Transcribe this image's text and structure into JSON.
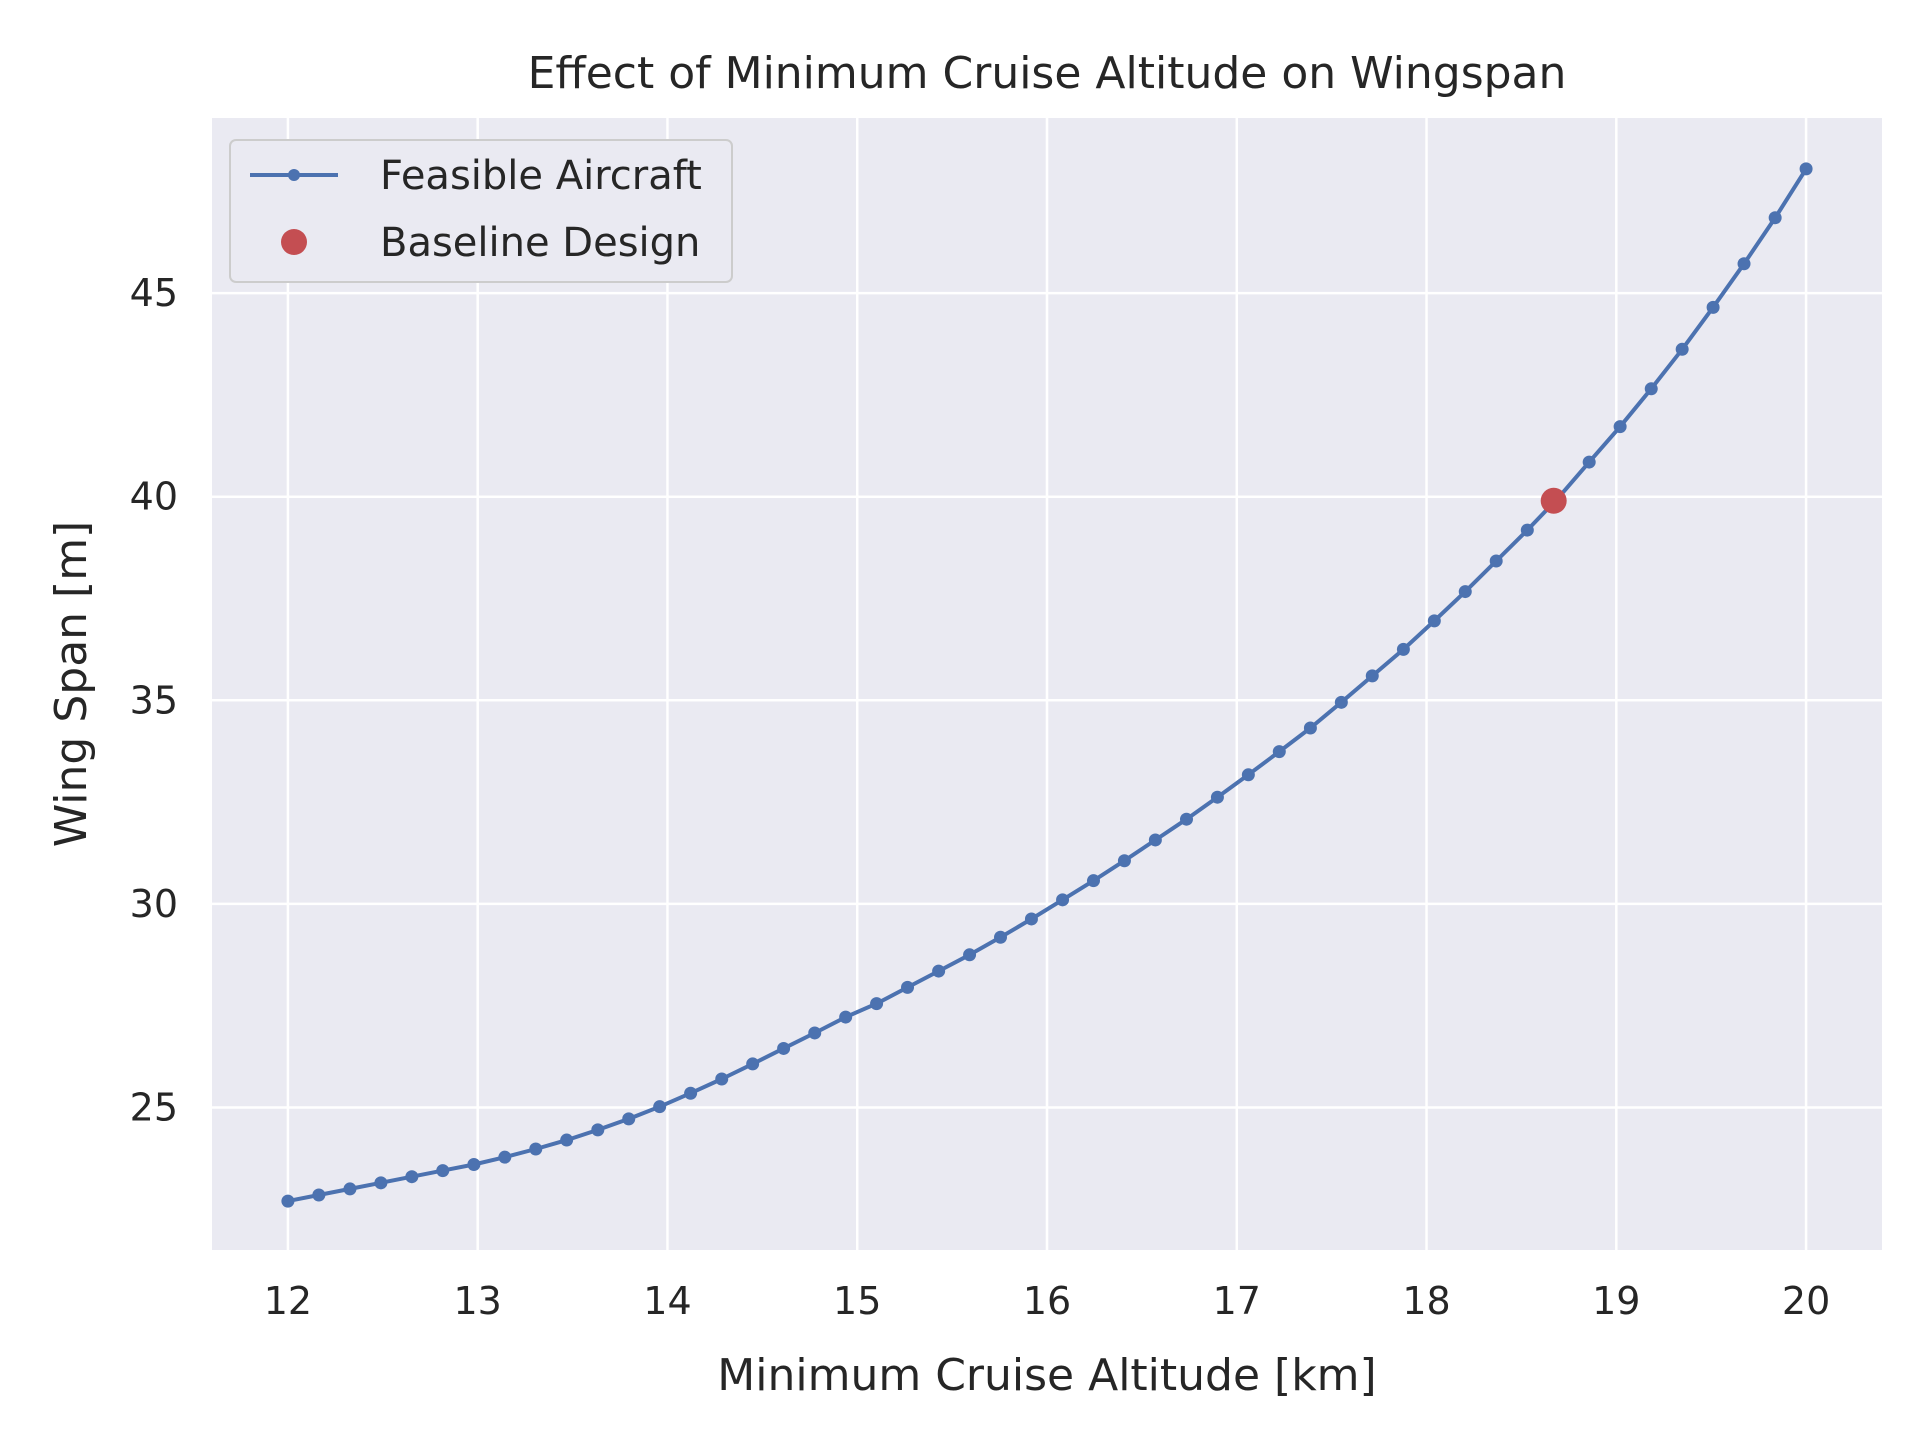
{
  "chart_data": {
    "type": "line",
    "title": "Effect of Minimum Cruise Altitude on Wingspan",
    "xlabel": "Minimum Cruise Altitude [km]",
    "ylabel": "Wing Span [m]",
    "xlim": [
      11.6,
      20.4
    ],
    "ylim": [
      21.5,
      49.3
    ],
    "xticks": [
      12,
      13,
      14,
      15,
      16,
      17,
      18,
      19,
      20
    ],
    "yticks": [
      25,
      30,
      35,
      40,
      45
    ],
    "grid": true,
    "legend_position": "top-left",
    "colors": {
      "background": "#eaeaf2",
      "grid": "#ffffff",
      "line": "#4c72b0",
      "baseline": "#c44e52"
    },
    "series": [
      {
        "name": "Feasible Aircraft",
        "marker": "dot",
        "x": [
          12.0,
          12.163,
          12.327,
          12.49,
          12.653,
          12.816,
          12.98,
          13.143,
          13.306,
          13.469,
          13.633,
          13.796,
          13.959,
          14.122,
          14.286,
          14.449,
          14.612,
          14.776,
          14.939,
          15.102,
          15.265,
          15.429,
          15.592,
          15.755,
          15.918,
          16.082,
          16.245,
          16.408,
          16.571,
          16.735,
          16.898,
          17.061,
          17.224,
          17.388,
          17.551,
          17.714,
          17.878,
          18.041,
          18.204,
          18.367,
          18.531,
          18.694,
          18.857,
          19.02,
          19.184,
          19.347,
          19.51,
          19.673,
          19.837,
          20.0
        ],
        "y": [
          22.7,
          22.85,
          23.0,
          23.15,
          23.3,
          23.45,
          23.6,
          23.78,
          23.98,
          24.2,
          24.45,
          24.72,
          25.02,
          25.35,
          25.7,
          26.07,
          26.45,
          26.83,
          27.22,
          27.55,
          27.95,
          28.35,
          28.75,
          29.18,
          29.63,
          30.1,
          30.57,
          31.06,
          31.57,
          32.08,
          32.62,
          33.17,
          33.74,
          34.32,
          34.95,
          35.6,
          36.25,
          36.95,
          37.67,
          38.42,
          39.18,
          39.97,
          40.85,
          41.72,
          42.65,
          43.62,
          44.65,
          45.72,
          46.85,
          48.05
        ]
      },
      {
        "name": "Baseline Design",
        "marker": "circle",
        "x": [
          18.67
        ],
        "y": [
          39.9
        ]
      }
    ]
  }
}
